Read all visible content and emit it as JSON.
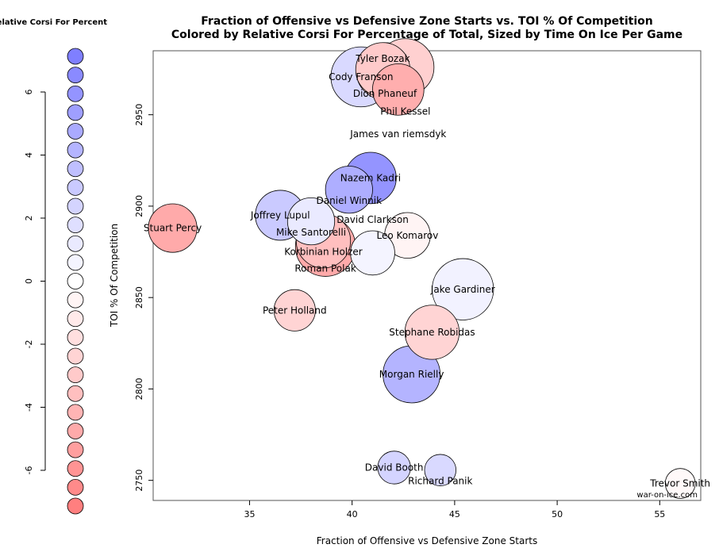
{
  "chart_data": {
    "type": "scatter",
    "title": "Fraction of Offensive vs Defensive Zone Starts vs. TOI % Of Competition",
    "subtitle": "Colored by Relative Corsi For Percentage of Total, Sized by Time On Ice Per Game",
    "xlabel": "Fraction of Offensive vs Defensive Zone Starts",
    "ylabel": "TOI % Of Competition",
    "xlim": [
      30.3,
      57.0
    ],
    "ylim": [
      2739,
      2985
    ],
    "xticks": [
      35,
      40,
      45,
      50,
      55
    ],
    "yticks": [
      2750,
      2800,
      2850,
      2900,
      2950
    ],
    "grid": false,
    "watermark": "war-on-ice.com",
    "legend": {
      "title": "Relative Corsi For Percent",
      "placement": "left",
      "ticks": [
        6,
        4,
        2,
        0,
        -2,
        -4,
        -6
      ],
      "range": [
        -6,
        6
      ],
      "colors": {
        "high": "#7f7fff",
        "mid": "#ffffff",
        "low": "#ff7f7f"
      }
    },
    "points": [
      {
        "name": "Cody Franson",
        "x": 40.43,
        "y": 2970.7,
        "color_value": 1.8,
        "size": 21
      },
      {
        "name": "Tyler Bozak",
        "x": 41.5,
        "y": 2974.6,
        "color_value": -2.5,
        "size": 19
      },
      {
        "name": "Dion Phaneuf",
        "x": 41.6,
        "y": 2973.8,
        "color_value": -2.3,
        "size": 20
      },
      {
        "name": "Phil Kessel",
        "x": 42.6,
        "y": 2976.0,
        "color_value": -2.2,
        "size": 20
      },
      {
        "name": "James van riemsdyk",
        "x": 42.25,
        "y": 2963.8,
        "color_value": -3.8,
        "size": 18
      },
      {
        "name": "Nazem Kadri",
        "x": 40.9,
        "y": 2915.4,
        "color_value": 5.0,
        "size": 18
      },
      {
        "name": "Daniel Winnik",
        "x": 39.85,
        "y": 2909.0,
        "color_value": 3.8,
        "size": 16.5
      },
      {
        "name": "Joffrey Lupul",
        "x": 36.5,
        "y": 2895.0,
        "color_value": 2.5,
        "size": 17.5
      },
      {
        "name": "Mike Santorelli",
        "x": 38.0,
        "y": 2891.7,
        "color_value": 1.0,
        "size": 16.5
      },
      {
        "name": "Stuart Percy",
        "x": 31.25,
        "y": 2888.0,
        "color_value": -4.0,
        "size": 17
      },
      {
        "name": "Leo Komarov",
        "x": 42.7,
        "y": 2884.0,
        "color_value": -0.5,
        "size": 16
      },
      {
        "name": "Korbinian Holzer",
        "x": 38.6,
        "y": 2881.0,
        "color_value": -3.0,
        "size": 19
      },
      {
        "name": "Roman Polak",
        "x": 38.7,
        "y": 2878.0,
        "color_value": -4.0,
        "size": 21
      },
      {
        "name": "David Clarkson",
        "x": 41.0,
        "y": 2874.4,
        "color_value": 0.5,
        "size": 15.5
      },
      {
        "name": "Jake Gardiner",
        "x": 45.4,
        "y": 2854.5,
        "color_value": 0.6,
        "size": 21.5
      },
      {
        "name": "Peter Holland",
        "x": 37.2,
        "y": 2843.0,
        "color_value": -2.0,
        "size": 14.5
      },
      {
        "name": "Stephane Robidas",
        "x": 43.9,
        "y": 2831.0,
        "color_value": -2.0,
        "size": 19
      },
      {
        "name": "Morgan Rielly",
        "x": 42.9,
        "y": 2808.0,
        "color_value": 3.5,
        "size": 20
      },
      {
        "name": "David Booth",
        "x": 42.05,
        "y": 2757.0,
        "color_value": 2.0,
        "size": 11.5
      },
      {
        "name": "Richard Panik",
        "x": 44.3,
        "y": 2755.6,
        "color_value": 1.8,
        "size": 11
      },
      {
        "name": "Trevor Smith",
        "x": 56.0,
        "y": 2748.3,
        "color_value": -0.3,
        "size": 10.5
      }
    ]
  }
}
